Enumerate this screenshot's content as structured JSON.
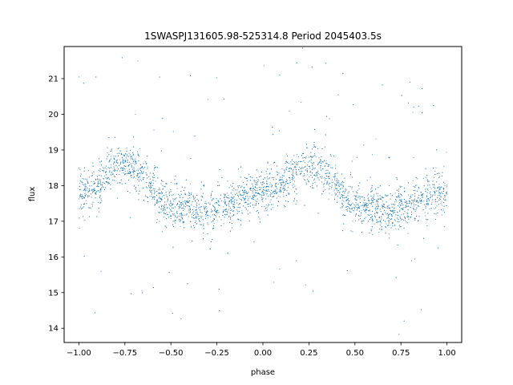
{
  "chart_data": {
    "type": "scatter",
    "title": "1SWASPJ131605.98-525314.8 Period 2045403.5s",
    "xlabel": "phase",
    "ylabel": "flux",
    "xlim": [
      -1.08,
      1.08
    ],
    "ylim": [
      13.6,
      21.9
    ],
    "x_ticks": [
      -1.0,
      -0.75,
      -0.5,
      -0.25,
      0.0,
      0.25,
      0.5,
      0.75,
      1.0
    ],
    "x_tick_labels": [
      "−1.00",
      "−0.75",
      "−0.50",
      "−0.25",
      "0.00",
      "0.25",
      "0.50",
      "0.75",
      "1.00"
    ],
    "y_ticks": [
      14,
      15,
      16,
      17,
      18,
      19,
      20,
      21
    ],
    "y_tick_labels": [
      "14",
      "15",
      "16",
      "17",
      "18",
      "19",
      "20",
      "21"
    ],
    "grid": false,
    "legend": "none",
    "marker_color": "#1f77b4",
    "series": [
      {
        "x": [
          -1.0,
          -0.95,
          -0.9,
          -0.85,
          -0.8,
          -0.75,
          -0.7,
          -0.65,
          -0.6,
          -0.55,
          -0.5,
          -0.45,
          -0.4,
          -0.35,
          -0.3,
          -0.25,
          -0.2,
          -0.15,
          -0.1,
          -0.05,
          0.0,
          0.05,
          0.1,
          0.15,
          0.2,
          0.25,
          0.3,
          0.35,
          0.4,
          0.45,
          0.5,
          0.55,
          0.6,
          0.65,
          0.7,
          0.75,
          0.8,
          0.85,
          0.9,
          0.95,
          1.0
        ],
        "y": [
          17.8,
          17.9,
          18.0,
          18.3,
          18.6,
          18.6,
          18.5,
          18.3,
          18.0,
          17.6,
          17.5,
          17.4,
          17.4,
          17.3,
          17.2,
          17.4,
          17.5,
          17.6,
          17.7,
          17.8,
          17.8,
          17.9,
          18.0,
          18.3,
          18.6,
          18.6,
          18.5,
          18.3,
          18.0,
          17.6,
          17.5,
          17.4,
          17.4,
          17.3,
          17.2,
          17.4,
          17.5,
          17.6,
          17.7,
          17.8,
          17.8
        ]
      }
    ]
  }
}
